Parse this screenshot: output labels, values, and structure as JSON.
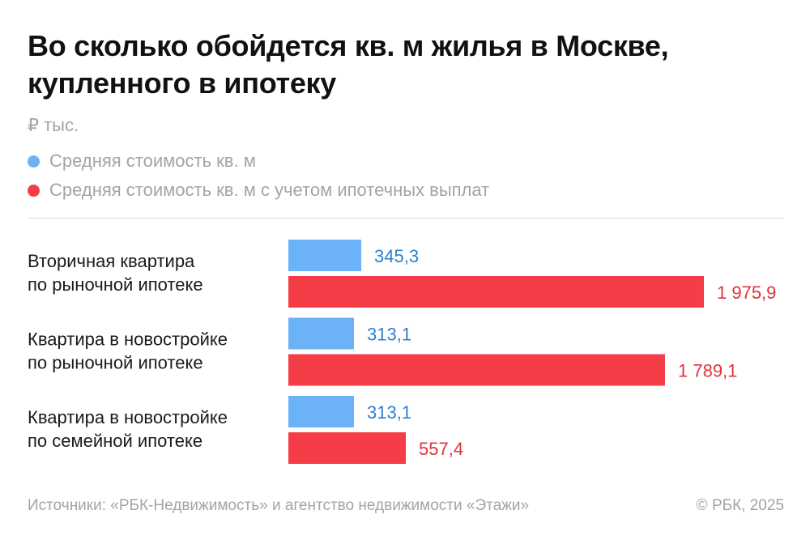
{
  "title_lines": [
    "Во сколько обойдется кв. м жилья в Москве,",
    "купленного в ипотеку"
  ],
  "unit": "₽ тыс.",
  "footer": {
    "source": "Источники: «РБК-Недвижимость» и агентство недвижимости «Этажи»",
    "copyright": "© РБК, 2025"
  },
  "colors": {
    "blue": "#6bb2f7",
    "red": "#f53d47",
    "blue_text": "#2f7fd1",
    "red_text": "#e0323c"
  },
  "chart_data": {
    "type": "bar",
    "orientation": "horizontal",
    "unit": "₽ тыс.",
    "categories": [
      [
        "Вторичная квартира",
        "по рыночной ипотеке"
      ],
      [
        "Квартира в новостройке",
        "по рыночной ипотеке"
      ],
      [
        "Квартира в новостройке",
        "по семейной ипотеке"
      ]
    ],
    "series": [
      {
        "name": "Средняя стоимость кв. м",
        "color": "#6bb2f7",
        "values": [
          345.3,
          313.1,
          313.1
        ],
        "labels": [
          "345,3",
          "313,1",
          "313,1"
        ]
      },
      {
        "name": "Средняя стоимость кв. м с учетом ипотечных выплат",
        "color": "#f53d47",
        "values": [
          1975.9,
          1789.1,
          557.4
        ],
        "labels": [
          "1 975,9",
          "1 789,1",
          "557,4"
        ]
      }
    ],
    "legend": "top-left",
    "grid": false
  }
}
